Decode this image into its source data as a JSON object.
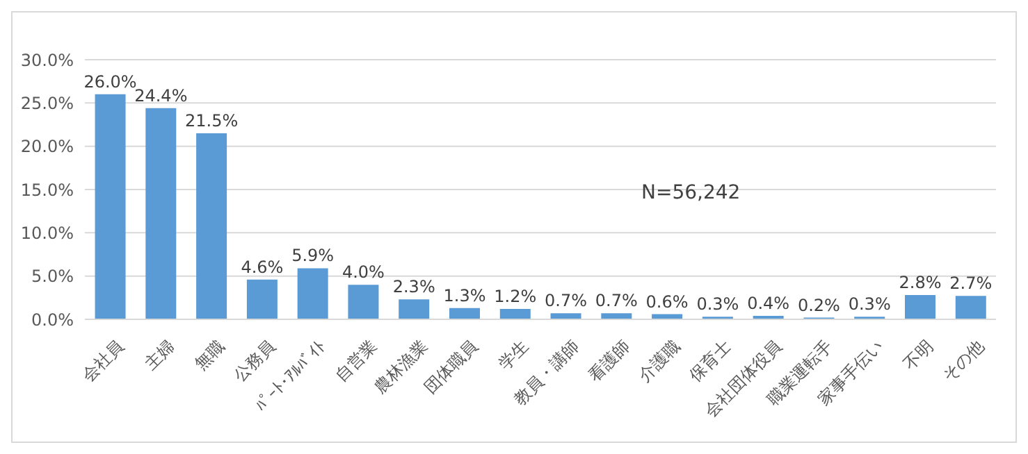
{
  "chart_data": {
    "type": "bar",
    "categories": [
      "会社員",
      "主婦",
      "無職",
      "公務員",
      "ﾊﾟｰﾄ･ｱﾙﾊﾞｲﾄ",
      "自営業",
      "農林漁業",
      "団体職員",
      "学生",
      "教員・講師",
      "看護師",
      "介護職",
      "保育士",
      "会社団体役員",
      "職業運転手",
      "家事手伝い",
      "不明",
      "その他"
    ],
    "values": [
      26.0,
      24.4,
      21.5,
      4.6,
      5.9,
      4.0,
      2.3,
      1.3,
      1.2,
      0.7,
      0.7,
      0.6,
      0.3,
      0.4,
      0.2,
      0.3,
      2.8,
      2.7
    ],
    "value_labels": [
      "26.0%",
      "24.4%",
      "21.5%",
      "4.6%",
      "5.9%",
      "4.0%",
      "2.3%",
      "1.3%",
      "1.2%",
      "0.7%",
      "0.7%",
      "0.6%",
      "0.3%",
      "0.4%",
      "0.2%",
      "0.3%",
      "2.8%",
      "2.7%"
    ],
    "color": "#5b9bd5",
    "ylim": [
      0,
      30
    ],
    "yticks": [
      {
        "value": 0,
        "label": "0.0%"
      },
      {
        "value": 5,
        "label": "5.0%"
      },
      {
        "value": 10,
        "label": "10.0%"
      },
      {
        "value": 15,
        "label": "15.0%"
      },
      {
        "value": 20,
        "label": "20.0%"
      },
      {
        "value": 25,
        "label": "25.0%"
      },
      {
        "value": 30,
        "label": "30.0%"
      }
    ],
    "grid": "y",
    "annotations": [
      "N=56,242"
    ]
  }
}
